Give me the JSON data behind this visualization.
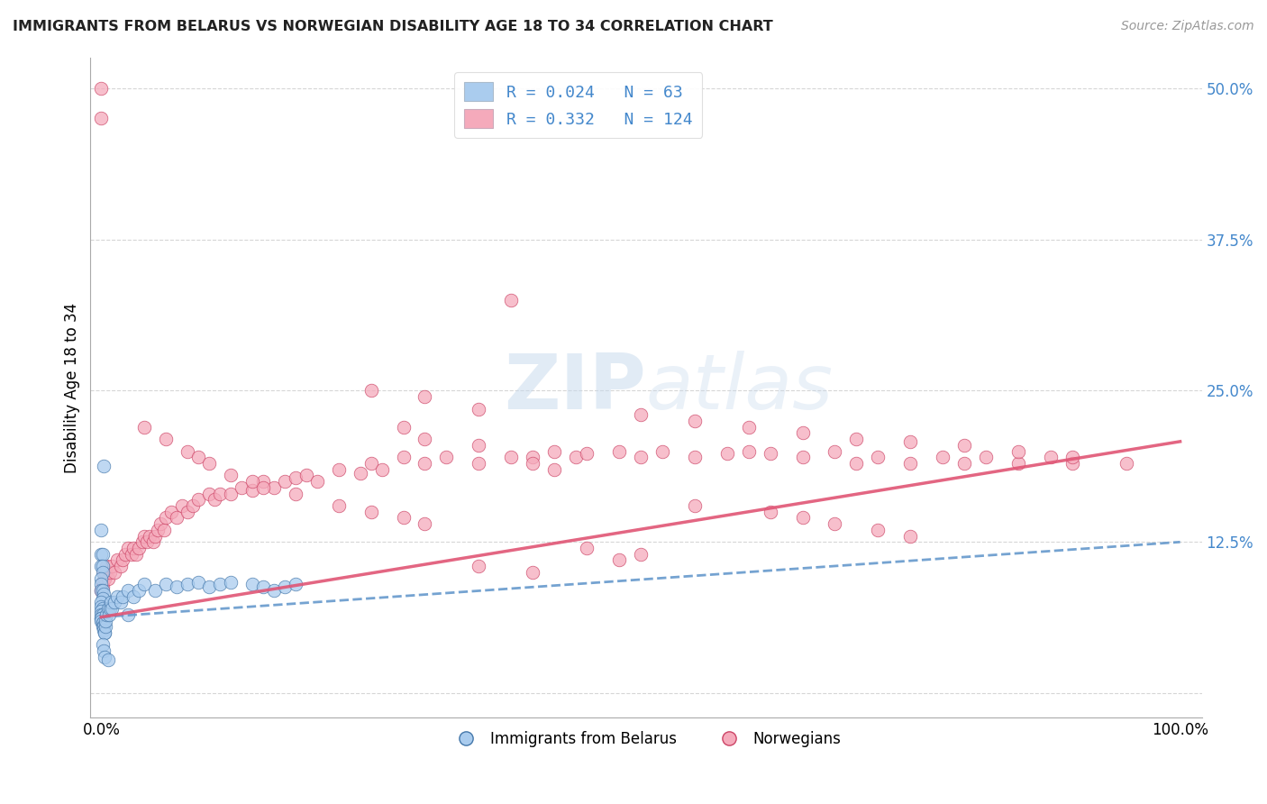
{
  "title": "IMMIGRANTS FROM BELARUS VS NORWEGIAN DISABILITY AGE 18 TO 34 CORRELATION CHART",
  "source": "Source: ZipAtlas.com",
  "ylabel": "Disability Age 18 to 34",
  "legend_R1": "0.024",
  "legend_N1": "63",
  "legend_R2": "0.332",
  "legend_N2": "124",
  "color_blue": "#aaccee",
  "color_pink": "#f5aabb",
  "color_blue_line": "#6699cc",
  "color_pink_line": "#e05575",
  "color_blue_border": "#4477aa",
  "color_pink_border": "#cc4466",
  "watermark_zip": "ZIP",
  "watermark_atlas": "atlas",
  "yticks": [
    0.0,
    0.125,
    0.25,
    0.375,
    0.5
  ],
  "ytick_labels": [
    "",
    "12.5%",
    "25.0%",
    "37.5%",
    "50.0%"
  ],
  "xtick_labels": [
    "0.0%",
    "100.0%"
  ],
  "blue_intercept": 0.063,
  "blue_slope": 0.062,
  "pink_intercept": 0.063,
  "pink_slope": 0.145,
  "blue_points_x": [
    0.002,
    0.0,
    0.0,
    0.001,
    0.0,
    0.001,
    0.001,
    0.0,
    0.0,
    0.0,
    0.001,
    0.002,
    0.001,
    0.0,
    0.0,
    0.001,
    0.0,
    0.0,
    0.001,
    0.0,
    0.0,
    0.0,
    0.001,
    0.001,
    0.001,
    0.002,
    0.002,
    0.003,
    0.003,
    0.004,
    0.004,
    0.005,
    0.006,
    0.007,
    0.008,
    0.009,
    0.01,
    0.012,
    0.015,
    0.018,
    0.02,
    0.025,
    0.03,
    0.035,
    0.04,
    0.05,
    0.06,
    0.07,
    0.08,
    0.09,
    0.1,
    0.11,
    0.12,
    0.14,
    0.15,
    0.16,
    0.17,
    0.18,
    0.001,
    0.002,
    0.003,
    0.006,
    0.025
  ],
  "blue_points_y": [
    0.188,
    0.135,
    0.115,
    0.115,
    0.105,
    0.105,
    0.1,
    0.095,
    0.09,
    0.085,
    0.085,
    0.082,
    0.078,
    0.075,
    0.072,
    0.07,
    0.068,
    0.065,
    0.065,
    0.062,
    0.062,
    0.06,
    0.058,
    0.058,
    0.055,
    0.055,
    0.052,
    0.05,
    0.05,
    0.055,
    0.06,
    0.065,
    0.07,
    0.065,
    0.07,
    0.075,
    0.07,
    0.075,
    0.08,
    0.075,
    0.08,
    0.085,
    0.08,
    0.085,
    0.09,
    0.085,
    0.09,
    0.088,
    0.09,
    0.092,
    0.088,
    0.09,
    0.092,
    0.09,
    0.088,
    0.085,
    0.088,
    0.09,
    0.04,
    0.035,
    0.03,
    0.028,
    0.065
  ],
  "pink_points_x": [
    0.0,
    0.001,
    0.001,
    0.002,
    0.003,
    0.004,
    0.005,
    0.006,
    0.008,
    0.01,
    0.012,
    0.015,
    0.018,
    0.02,
    0.022,
    0.025,
    0.028,
    0.03,
    0.032,
    0.035,
    0.038,
    0.04,
    0.042,
    0.045,
    0.048,
    0.05,
    0.052,
    0.055,
    0.058,
    0.06,
    0.065,
    0.07,
    0.075,
    0.08,
    0.085,
    0.09,
    0.1,
    0.105,
    0.11,
    0.12,
    0.13,
    0.14,
    0.15,
    0.16,
    0.17,
    0.18,
    0.19,
    0.2,
    0.22,
    0.24,
    0.25,
    0.26,
    0.28,
    0.3,
    0.32,
    0.35,
    0.38,
    0.4,
    0.42,
    0.44,
    0.45,
    0.48,
    0.5,
    0.52,
    0.55,
    0.58,
    0.6,
    0.62,
    0.65,
    0.68,
    0.7,
    0.72,
    0.75,
    0.78,
    0.8,
    0.82,
    0.85,
    0.88,
    0.9,
    0.38,
    0.04,
    0.06,
    0.08,
    0.09,
    0.1,
    0.12,
    0.14,
    0.15,
    0.18,
    0.22,
    0.25,
    0.28,
    0.3,
    0.55,
    0.62,
    0.65,
    0.68,
    0.72,
    0.75,
    0.28,
    0.3,
    0.35,
    0.4,
    0.42,
    0.25,
    0.3,
    0.35,
    0.5,
    0.55,
    0.6,
    0.65,
    0.7,
    0.75,
    0.8,
    0.85,
    0.9,
    0.95,
    0.45,
    0.5,
    0.48,
    0.35,
    0.4,
    0.0,
    0.0
  ],
  "pink_points_y": [
    0.085,
    0.092,
    0.088,
    0.1,
    0.095,
    0.1,
    0.105,
    0.095,
    0.1,
    0.105,
    0.1,
    0.11,
    0.105,
    0.11,
    0.115,
    0.12,
    0.115,
    0.12,
    0.115,
    0.12,
    0.125,
    0.13,
    0.125,
    0.13,
    0.125,
    0.13,
    0.135,
    0.14,
    0.135,
    0.145,
    0.15,
    0.145,
    0.155,
    0.15,
    0.155,
    0.16,
    0.165,
    0.16,
    0.165,
    0.165,
    0.17,
    0.168,
    0.175,
    0.17,
    0.175,
    0.178,
    0.18,
    0.175,
    0.185,
    0.182,
    0.19,
    0.185,
    0.195,
    0.19,
    0.195,
    0.19,
    0.195,
    0.195,
    0.2,
    0.195,
    0.198,
    0.2,
    0.195,
    0.2,
    0.195,
    0.198,
    0.2,
    0.198,
    0.195,
    0.2,
    0.19,
    0.195,
    0.19,
    0.195,
    0.19,
    0.195,
    0.19,
    0.195,
    0.19,
    0.325,
    0.22,
    0.21,
    0.2,
    0.195,
    0.19,
    0.18,
    0.175,
    0.17,
    0.165,
    0.155,
    0.15,
    0.145,
    0.14,
    0.155,
    0.15,
    0.145,
    0.14,
    0.135,
    0.13,
    0.22,
    0.21,
    0.205,
    0.19,
    0.185,
    0.25,
    0.245,
    0.235,
    0.23,
    0.225,
    0.22,
    0.215,
    0.21,
    0.208,
    0.205,
    0.2,
    0.195,
    0.19,
    0.12,
    0.115,
    0.11,
    0.105,
    0.1,
    0.5,
    0.475
  ]
}
